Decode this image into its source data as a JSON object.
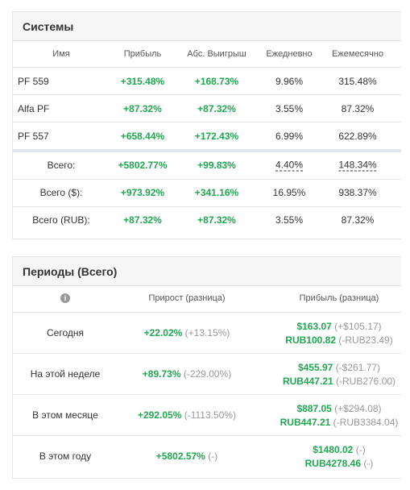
{
  "systems": {
    "title": "Системы",
    "headers": [
      "Имя",
      "Прибыль",
      "Абс. Выигрыш",
      "Ежедневно",
      "Ежемесячно"
    ],
    "rows": [
      [
        "PF 559",
        "+315.48%",
        "+168.73%",
        "9.96%",
        "315.48%"
      ],
      [
        "Alfa PF",
        "+87.32%",
        "+87.32%",
        "3.55%",
        "87.32%"
      ],
      [
        "PF 557",
        "+658.44%",
        "+172.43%",
        "6.99%",
        "622.89%"
      ]
    ],
    "totals": [
      [
        "Всего:",
        "+5802.77%",
        "+99.83%",
        "4.40%",
        "148.34%"
      ],
      [
        "Всего ($):",
        "+973.92%",
        "+341.16%",
        "16.95%",
        "938.37%"
      ],
      [
        "Всего (RUB):",
        "+87.32%",
        "+87.32%",
        "3.55%",
        "87.32%"
      ]
    ]
  },
  "periods": {
    "title": "Периоды (Всего)",
    "headers": [
      "Прирост (разница)",
      "Прибыль (разница)"
    ],
    "rows": [
      {
        "label": "Сегодня",
        "growth": "+22.02%",
        "growth_diff": "(+13.15%)",
        "profit": [
          {
            "main": "$163.07",
            "diff": "(+$105.17)"
          },
          {
            "main": "RUB100.82",
            "diff": "(-RUB23.49)"
          }
        ]
      },
      {
        "label": "На этой неделе",
        "growth": "+89.73%",
        "growth_diff": "(-229.00%)",
        "profit": [
          {
            "main": "$455.97",
            "diff": "(-$261.77)"
          },
          {
            "main": "RUB447.21",
            "diff": "(-RUB276.00)"
          }
        ]
      },
      {
        "label": "В этом месяце",
        "growth": "+292.05%",
        "growth_diff": "(-1113.50%)",
        "profit": [
          {
            "main": "$887.05",
            "diff": "(+$294.08)"
          },
          {
            "main": "RUB447.21",
            "diff": "(-RUB3384.04)"
          }
        ]
      },
      {
        "label": "В этом году",
        "growth": "+5802.57%",
        "growth_diff": "(-)",
        "profit": [
          {
            "main": "$1480.02",
            "diff": "(-)"
          },
          {
            "main": "RUB4278.46",
            "diff": "(-)"
          }
        ]
      }
    ]
  }
}
